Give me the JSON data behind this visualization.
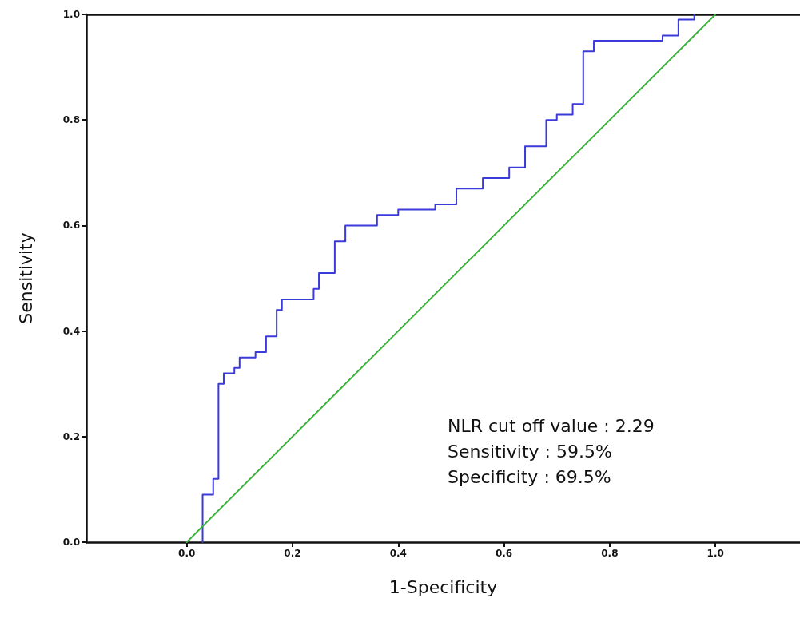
{
  "chart_data": {
    "type": "line",
    "xlabel": "1-Specificity",
    "ylabel": "Sensitivity",
    "xlim": [
      -0.19,
      1.16
    ],
    "ylim": [
      0,
      1
    ],
    "xticks": [
      {
        "value": 0,
        "label": "0.0"
      },
      {
        "value": 0.2,
        "label": "0.2"
      },
      {
        "value": 0.4,
        "label": "0.4"
      },
      {
        "value": 0.6,
        "label": "0.6"
      },
      {
        "value": 0.8,
        "label": "0.8"
      },
      {
        "value": 1,
        "label": "1.0"
      }
    ],
    "yticks": [
      {
        "value": 0,
        "label": "0.0"
      },
      {
        "value": 0.2,
        "label": "0.2"
      },
      {
        "value": 0.4,
        "label": "0.4"
      },
      {
        "value": 0.6,
        "label": "0.6"
      },
      {
        "value": 0.8,
        "label": "0.8"
      },
      {
        "value": 1,
        "label": "1.0"
      }
    ],
    "grid": false,
    "marker": "none",
    "series": [
      {
        "type": "step",
        "color": "#3b3bdc",
        "x": [
          0.03,
          0.03,
          0.03,
          0.05,
          0.06,
          0.07,
          0.09,
          0.1,
          0.13,
          0.15,
          0.17,
          0.18,
          0.24,
          0.25,
          0.28,
          0.28,
          0.3,
          0.36,
          0.4,
          0.47,
          0.51,
          0.56,
          0.61,
          0.64,
          0.68,
          0.7,
          0.73,
          0.75,
          0.77,
          0.9,
          0.93,
          0.96
        ],
        "values": [
          0,
          0.05,
          0.09,
          0.12,
          0.3,
          0.32,
          0.33,
          0.35,
          0.36,
          0.39,
          0.44,
          0.46,
          0.48,
          0.51,
          0.55,
          0.57,
          0.6,
          0.62,
          0.63,
          0.64,
          0.67,
          0.69,
          0.71,
          0.75,
          0.8,
          0.81,
          0.83,
          0.93,
          0.95,
          0.96,
          0.99,
          1
        ]
      },
      {
        "type": "line",
        "color": "#3cb03c",
        "x": [
          0,
          1
        ],
        "values": [
          0,
          1
        ]
      }
    ],
    "annotations": [
      "NLR cut off value : 2.29",
      "Sensitivity : 59.5%",
      "Specificity : 69.5%"
    ]
  }
}
